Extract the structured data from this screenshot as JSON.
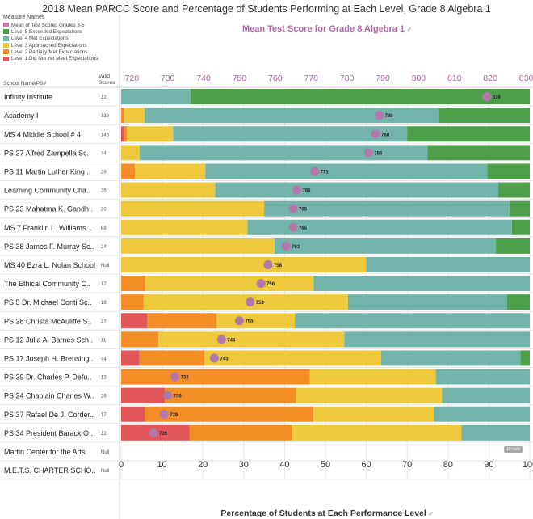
{
  "title": "2018 Mean PARCC Score and Percentage of Students Performing at Each Level, Grade 8 Algebra 1",
  "legend": {
    "title": "Measure Names",
    "items": [
      {
        "label": "Mean of Test Scores Grades 3-5",
        "color": "#c47ea9"
      },
      {
        "label": "Level 5 Exceeded Expectations",
        "color": "#4e9f49"
      },
      {
        "label": "Level 4 Met Expectations",
        "color": "#73b4aa"
      },
      {
        "label": "Level 3 Approached Expectations",
        "color": "#efc93c"
      },
      {
        "label": "Level 2 Partially Met Expectations",
        "color": "#f28e25"
      },
      {
        "label": "Level 1 Did Not Yet Meet Expectations",
        "color": "#e15759"
      }
    ]
  },
  "headers": {
    "school": "School Name/PS#",
    "valid_line1": "Valid",
    "valid_line2": "Scores"
  },
  "top_axis_label": "Mean Test Score for Grade 8 Algebra 1",
  "bottom_axis_label": "Percentage of Students at Each Performance Level",
  "nulls_badge": "10 nulls",
  "colors": {
    "l1": "#e15759",
    "l2": "#f28e25",
    "l3": "#efc93c",
    "l4": "#73b4aa",
    "l5": "#4e9f49",
    "mean": "#b279a8",
    "grid": "#e6e6e6",
    "divider": "#d0d0d0"
  },
  "chart_data": {
    "type": "bar",
    "stacked": true,
    "orientation": "horizontal",
    "bottom_axis": {
      "range": [
        0,
        100
      ],
      "ticks": [
        0,
        10,
        20,
        30,
        40,
        50,
        60,
        70,
        80,
        90,
        100
      ]
    },
    "top_axis": {
      "range": [
        717,
        831
      ],
      "ticks": [
        720,
        730,
        740,
        750,
        760,
        770,
        780,
        790,
        800,
        810,
        820,
        830
      ]
    },
    "series_order": [
      "Level 1 Did Not Yet Meet Expectations",
      "Level 2 Partially Met Expectations",
      "Level 3 Approached Expectations",
      "Level 4 Met Expectations",
      "Level 5 Exceeded Expectations"
    ],
    "rows": [
      {
        "school": "Infinity Institute",
        "valid": "12",
        "levels": [
          0,
          0,
          0,
          17,
          83
        ],
        "mean": 819
      },
      {
        "school": "Academy I",
        "valid": "139",
        "levels": [
          0,
          0.7,
          5,
          72,
          22.3
        ],
        "mean": 789
      },
      {
        "school": "MS 4 Middle School # 4",
        "valid": "146",
        "levels": [
          0.7,
          0.7,
          11.3,
          57.3,
          30
        ],
        "mean": 788
      },
      {
        "school": "PS 27 Alfred Zampella Sc..",
        "valid": "44",
        "levels": [
          0,
          0,
          4.5,
          70.5,
          25
        ],
        "mean": 786
      },
      {
        "school": "PS 11 Martin Luther King ..",
        "valid": "29",
        "levels": [
          0,
          3.4,
          17.2,
          69,
          10.4
        ],
        "mean": 771
      },
      {
        "school": "Learning Community Cha..",
        "valid": "26",
        "levels": [
          0,
          0,
          23,
          69.3,
          7.7
        ],
        "mean": 766
      },
      {
        "school": "PS 23 Mahatma K. Gandh..",
        "valid": "20",
        "levels": [
          0,
          0,
          35,
          60,
          5
        ],
        "mean": 765
      },
      {
        "school": "MS 7 Franklin L. Williams ..",
        "valid": "68",
        "levels": [
          0,
          0,
          30.9,
          64.7,
          4.4
        ],
        "mean": 765
      },
      {
        "school": "PS 38 James F. Murray Sc..",
        "valid": "24",
        "levels": [
          0,
          0,
          37.5,
          54.2,
          8.3
        ],
        "mean": 763
      },
      {
        "school": "MS 40 Ezra L. Nolan School",
        "valid": "Null",
        "levels": [
          0,
          0,
          60,
          40,
          0
        ],
        "mean": 758
      },
      {
        "school": "The Ethical Community C..",
        "valid": "17",
        "levels": [
          0,
          5.9,
          41.2,
          52.9,
          0
        ],
        "mean": 756
      },
      {
        "school": "PS 5 Dr. Michael Conti Sc..",
        "valid": "18",
        "levels": [
          0,
          5.5,
          50,
          38.9,
          5.6
        ],
        "mean": 753
      },
      {
        "school": "PS 28 Christa McAuliffe S..",
        "valid": "47",
        "levels": [
          6.4,
          17,
          19.1,
          57.5,
          0
        ],
        "mean": 750
      },
      {
        "school": "PS 12 Julia A. Barnes Sch..",
        "valid": "11",
        "levels": [
          0,
          9.1,
          45.5,
          45.4,
          0
        ],
        "mean": 745
      },
      {
        "school": "PS 17 Joseph H. Brensing..",
        "valid": "44",
        "levels": [
          4.5,
          15.9,
          43.2,
          34.1,
          2.3
        ],
        "mean": 743
      },
      {
        "school": "PS 39 Dr. Charles P. Defu..",
        "valid": "13",
        "levels": [
          0,
          46.2,
          30.8,
          23,
          0
        ],
        "mean": 732
      },
      {
        "school": "PS 24 Chaplain Charles W..",
        "valid": "28",
        "levels": [
          10.7,
          32.1,
          35.7,
          21.5,
          0
        ],
        "mean": 730
      },
      {
        "school": "PS 37 Rafael De J. Corder..",
        "valid": "17",
        "levels": [
          5.9,
          41.2,
          29.4,
          23.5,
          0
        ],
        "mean": 729
      },
      {
        "school": "PS 34 President Barack O..",
        "valid": "12",
        "levels": [
          16.7,
          25,
          41.6,
          16.7,
          0
        ],
        "mean": 726
      },
      {
        "school": "Martin Center for the Arts",
        "valid": "Null",
        "levels": null,
        "mean": null
      },
      {
        "school": "M.E.T.S. CHARTER SCHO..",
        "valid": "Null",
        "levels": null,
        "mean": null
      }
    ]
  }
}
